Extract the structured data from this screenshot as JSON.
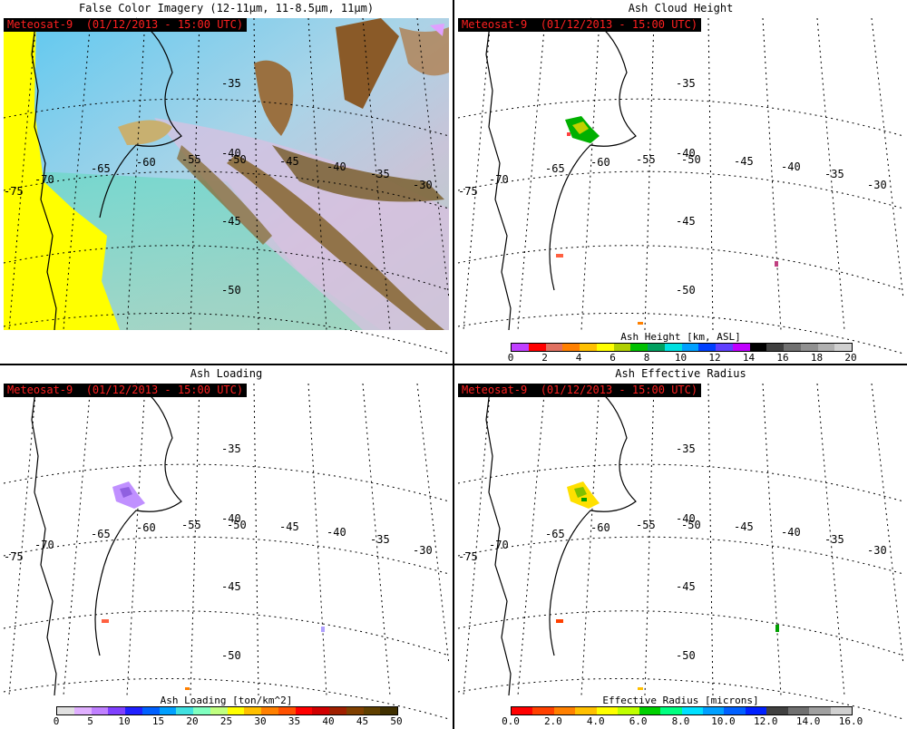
{
  "panels": {
    "false_color": {
      "title": "False Color Imagery (12-11μm, 11-8.5μm, 11μm)",
      "satellite_label": "Meteosat-9  (01/12/2013 - 15:00 UTC)"
    },
    "ash_height": {
      "title": "Ash Cloud Height",
      "satellite_label": "Meteosat-9  (01/12/2013 - 15:00 UTC)",
      "colorbar_title": "Ash Height [km, ASL]",
      "colorbar_ticks": [
        "0",
        "2",
        "4",
        "6",
        "8",
        "10",
        "12",
        "14",
        "16",
        "18",
        "20"
      ],
      "colorbar_colors": [
        "#c040ff",
        "#ff0000",
        "#e07060",
        "#ff8000",
        "#ffc000",
        "#ffff00",
        "#b0d000",
        "#00c000",
        "#00a060",
        "#00e0e0",
        "#00a0ff",
        "#0040ff",
        "#6040ff",
        "#c000ff",
        "#000000",
        "#404040",
        "#707070",
        "#909090",
        "#b0b0b0",
        "#d0d0d0"
      ]
    },
    "ash_loading": {
      "title": "Ash Loading",
      "satellite_label": "Meteosat-9  (01/12/2013 - 15:00 UTC)",
      "colorbar_title": "Ash Loading [ton/km^2]",
      "colorbar_ticks": [
        "0",
        "5",
        "10",
        "15",
        "20",
        "25",
        "30",
        "35",
        "40",
        "45",
        "50"
      ],
      "colorbar_colors": [
        "#e0e0e0",
        "#e0b0ff",
        "#c080ff",
        "#8040ff",
        "#2020ff",
        "#0060ff",
        "#00a0ff",
        "#40e0e0",
        "#80ffc0",
        "#c0ff80",
        "#ffff00",
        "#ffc000",
        "#ff8000",
        "#ff5000",
        "#ff0000",
        "#d00000",
        "#a02000",
        "#804000",
        "#604000",
        "#403000"
      ]
    },
    "ash_radius": {
      "title": "Ash Effective Radius",
      "satellite_label": "Meteosat-9  (01/12/2013 - 15:00 UTC)",
      "colorbar_title": "Effective Radius [microns]",
      "colorbar_ticks": [
        "0.0",
        "2.0",
        "4.0",
        "6.0",
        "8.0",
        "10.0",
        "12.0",
        "14.0",
        "16.0"
      ],
      "colorbar_colors": [
        "#ff0000",
        "#ff4000",
        "#ff8000",
        "#ffc000",
        "#ffff00",
        "#c0ff00",
        "#00d000",
        "#00ff80",
        "#00e0ff",
        "#00a0ff",
        "#0060ff",
        "#0020ff",
        "#404040",
        "#707070",
        "#a0a0a0",
        "#d0d0d0"
      ]
    }
  },
  "map_labels": {
    "lon": [
      "-75",
      "-70",
      "-65",
      "-60",
      "-55",
      "-50",
      "-45",
      "-40",
      "-35",
      "-30"
    ],
    "lat": [
      "-35",
      "-40",
      "-45",
      "-50"
    ]
  }
}
